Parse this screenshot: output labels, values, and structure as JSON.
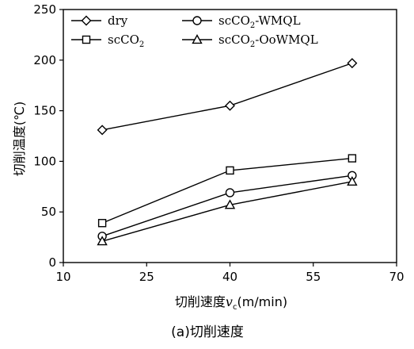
{
  "chart_data": {
    "type": "line",
    "caption": "(a)切削速度",
    "xlabel_main": "切削速度",
    "xlabel_var": "v",
    "xlabel_sub": "c",
    "xlabel_unit": "(m/min)",
    "ylabel": "切削温度(℃)",
    "xlim": [
      10,
      70
    ],
    "ylim": [
      0,
      250
    ],
    "xticks": [
      10,
      25,
      40,
      55,
      70
    ],
    "yticks": [
      0,
      50,
      100,
      150,
      200,
      250
    ],
    "x": [
      17,
      40,
      62
    ],
    "legend_position": "top",
    "series": [
      {
        "name": "dry",
        "name_main": "dry",
        "name_sub": "",
        "name_tail": "",
        "marker": "diamond",
        "values": [
          131,
          155,
          197
        ]
      },
      {
        "name": "scCO2",
        "name_main": "scCO",
        "name_sub": "2",
        "name_tail": "",
        "marker": "square",
        "values": [
          39,
          91,
          103
        ]
      },
      {
        "name": "scCO2-WMQL",
        "name_main": "scCO",
        "name_sub": "2",
        "name_tail": "-WMQL",
        "marker": "circle",
        "values": [
          26,
          69,
          86
        ]
      },
      {
        "name": "scCO2-OoWMQL",
        "name_main": "scCO",
        "name_sub": "2",
        "name_tail": "-OoWMQL",
        "marker": "triangle",
        "values": [
          21,
          57,
          80
        ]
      }
    ]
  }
}
